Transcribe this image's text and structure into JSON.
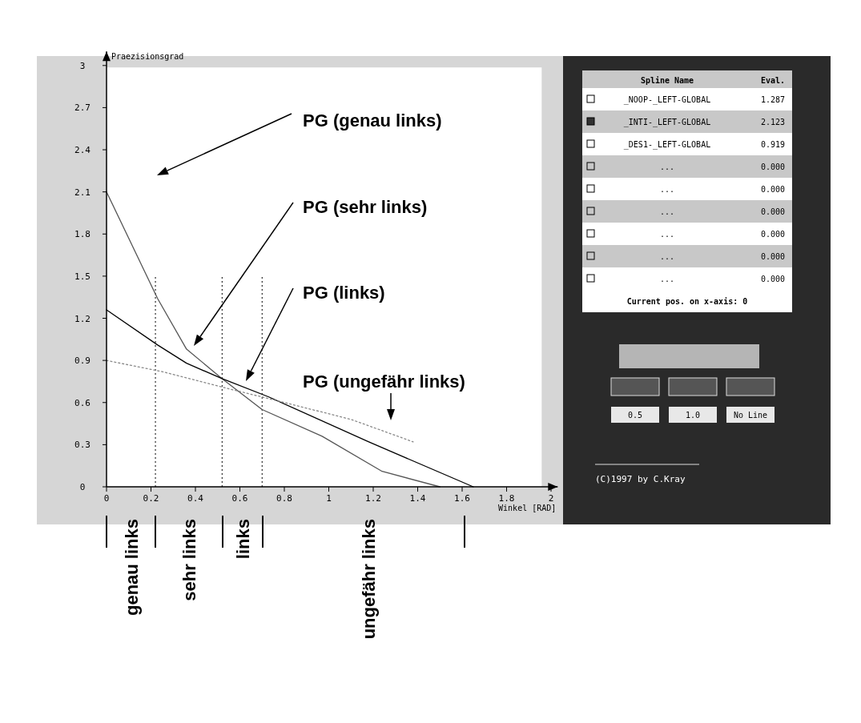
{
  "chart_data": {
    "type": "line",
    "xlabel": "Winkel [RAD]",
    "ylabel": "Praezisionsgrad",
    "xlim": [
      0,
      2.03
    ],
    "ylim": [
      0,
      3.1
    ],
    "xticks": [
      0,
      0.2,
      0.4,
      0.6,
      0.8,
      1,
      1.2,
      1.4,
      1.6,
      1.8,
      2
    ],
    "yticks": [
      0,
      0.3,
      0.6,
      0.9,
      1.2,
      1.5,
      1.8,
      2.1,
      2.4,
      2.7,
      3
    ],
    "grid": false,
    "series": [
      {
        "color": "#555555",
        "line_style": "solid",
        "x": [
          0,
          0.23,
          0.36,
          0.52,
          0.7,
          0.97,
          1.24,
          1.5
        ],
        "values": [
          2.1,
          1.34,
          0.98,
          0.77,
          0.55,
          0.36,
          0.11,
          0
        ]
      },
      {
        "color": "#000000",
        "line_style": "solid",
        "x": [
          0,
          0.23,
          0.36,
          0.52,
          0.73,
          1.18,
          1.65
        ],
        "values": [
          1.26,
          1.01,
          0.88,
          0.77,
          0.64,
          0.32,
          0
        ]
      },
      {
        "color": "#888888",
        "line_style": "dotted",
        "x": [
          0,
          0.25,
          0.52,
          0.75,
          1.1,
          1.38
        ],
        "values": [
          0.9,
          0.82,
          0.71,
          0.62,
          0.48,
          0.32
        ]
      }
    ],
    "ref_lines": [
      {
        "axis": "x",
        "value": 0.22,
        "line_style": "dotted"
      },
      {
        "axis": "x",
        "value": 0.52,
        "line_style": "dotted"
      },
      {
        "axis": "x",
        "value": 0.7,
        "line_style": "dotted"
      }
    ],
    "annotations": [
      "PG (genau links)",
      "PG (sehr links)",
      "PG (links)",
      "PG (ungefähr links)",
      "genau links",
      "sehr links",
      "links",
      "ungefähr links",
      "Spline Name",
      "Eval.",
      "_NOOP-_LEFT-GLOBAL",
      "1.287",
      "_INTI-_LEFT-GLOBAL",
      "2.123",
      "_DES1-_LEFT-GLOBAL",
      "0.919",
      "...",
      "0.000",
      "...",
      "0.000",
      "...",
      "0.000",
      "...",
      "0.000",
      "...",
      "0.000",
      "...",
      "0.000",
      "Current pos. on x-axis: 0",
      "0.5",
      "1.0",
      "No Line",
      "(C)1997 by C.Kray"
    ]
  }
}
